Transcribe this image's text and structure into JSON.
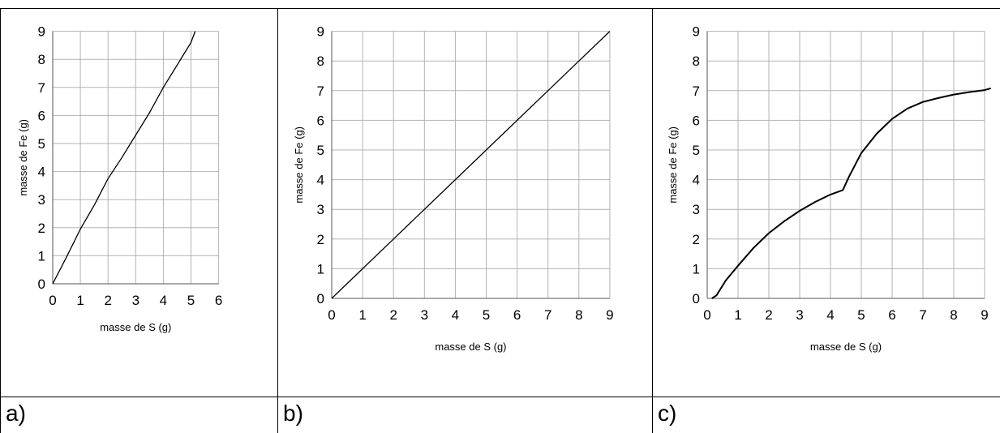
{
  "panel_labels": [
    "a)",
    "b)",
    "c)"
  ],
  "chart_data": [
    {
      "type": "line",
      "panel": "a)",
      "xlabel": "masse de S (g)",
      "ylabel": "masse de Fe (g)",
      "xlim": [
        0,
        6
      ],
      "ylim": [
        0,
        9
      ],
      "xticks": [
        0,
        1,
        2,
        3,
        4,
        5,
        6
      ],
      "yticks": [
        0,
        1,
        2,
        3,
        4,
        5,
        6,
        7,
        8,
        9
      ],
      "grid": true,
      "series": [
        {
          "x": [
            0,
            0.5,
            1,
            1.5,
            2,
            2.5,
            3,
            3.5,
            4,
            4.5,
            5,
            5.15
          ],
          "y": [
            0,
            0.95,
            1.95,
            2.8,
            3.75,
            4.5,
            5.3,
            6.1,
            7.0,
            7.8,
            8.6,
            9.0
          ]
        }
      ]
    },
    {
      "type": "line",
      "panel": "b)",
      "xlabel": "masse de S (g)",
      "ylabel": "masse de Fe (g)",
      "xlim": [
        0,
        9
      ],
      "ylim": [
        0,
        9
      ],
      "xticks": [
        0,
        1,
        2,
        3,
        4,
        5,
        6,
        7,
        8,
        9
      ],
      "yticks": [
        0,
        1,
        2,
        3,
        4,
        5,
        6,
        7,
        8,
        9
      ],
      "grid": true,
      "series": [
        {
          "x": [
            0,
            1,
            2,
            3,
            4,
            5,
            6,
            7,
            8,
            9
          ],
          "y": [
            0,
            1,
            2,
            3,
            4,
            5,
            6,
            7,
            8,
            9
          ]
        }
      ]
    },
    {
      "type": "line",
      "panel": "c)",
      "xlabel": "masse de S (g)",
      "ylabel": "masse de Fe (g)",
      "xlim": [
        0,
        9
      ],
      "ylim": [
        0,
        9
      ],
      "xticks": [
        0,
        1,
        2,
        3,
        4,
        5,
        6,
        7,
        8,
        9
      ],
      "yticks": [
        0,
        1,
        2,
        3,
        4,
        5,
        6,
        7,
        8,
        9
      ],
      "grid": true,
      "series": [
        {
          "x": [
            0.15,
            0.3,
            0.6,
            1,
            1.5,
            2,
            2.5,
            3,
            3.5,
            4,
            4.4,
            4.6,
            5,
            5.5,
            6,
            6.5,
            7,
            7.5,
            8,
            8.5,
            9,
            9.2
          ],
          "y": [
            0,
            0.1,
            0.6,
            1.1,
            1.7,
            2.2,
            2.6,
            2.95,
            3.25,
            3.5,
            3.65,
            4.1,
            4.9,
            5.55,
            6.05,
            6.4,
            6.62,
            6.75,
            6.87,
            6.95,
            7.02,
            7.08
          ]
        }
      ]
    }
  ]
}
